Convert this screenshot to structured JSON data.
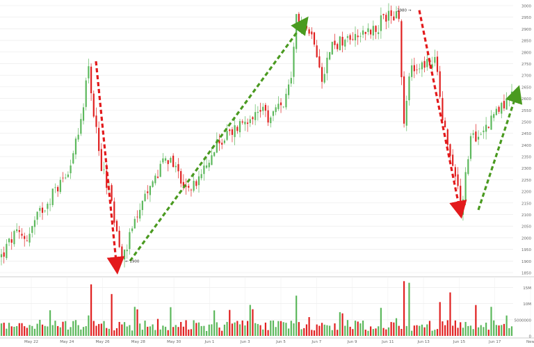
{
  "chart_data": {
    "type": "candlestick",
    "price_axis": {
      "min": 1850,
      "max": 3000,
      "ticks": [
        1850,
        1900,
        1950,
        2000,
        2050,
        2100,
        2150,
        2200,
        2250,
        2300,
        2350,
        2400,
        2450,
        2500,
        2550,
        2600,
        2650,
        2700,
        2750,
        2800,
        2850,
        2900,
        2950,
        3000
      ]
    },
    "volume_axis": {
      "min": 0,
      "max": 17500000,
      "ticks": [
        0,
        5000000,
        10000000,
        15000000
      ],
      "tick_labels": [
        "0",
        "5000000",
        "10M",
        "15M"
      ]
    },
    "x_labels": [
      "May 22",
      "May 24",
      "May 26",
      "May 28",
      "May 30",
      "Jun 1",
      "Jun 3",
      "Jun 5",
      "Jun 7",
      "Jun 9",
      "Jun 11",
      "Jun 13",
      "Jun 15",
      "Jun 17",
      "New"
    ],
    "price_path": [
      [
        0,
        1920
      ],
      [
        5,
        2010
      ],
      [
        10,
        2000
      ],
      [
        15,
        2110
      ],
      [
        20,
        2190
      ],
      [
        25,
        2270
      ],
      [
        30,
        2430
      ],
      [
        34,
        2750
      ],
      [
        38,
        2350
      ],
      [
        42,
        2200
      ],
      [
        47,
        1900
      ],
      [
        52,
        2060
      ],
      [
        58,
        2210
      ],
      [
        63,
        2330
      ],
      [
        68,
        2310
      ],
      [
        72,
        2200
      ],
      [
        78,
        2260
      ],
      [
        84,
        2400
      ],
      [
        90,
        2460
      ],
      [
        96,
        2520
      ],
      [
        100,
        2560
      ],
      [
        104,
        2510
      ],
      [
        110,
        2580
      ],
      [
        113,
        2660
      ],
      [
        115,
        2940
      ],
      [
        118,
        2900
      ],
      [
        122,
        2860
      ],
      [
        125,
        2700
      ],
      [
        129,
        2830
      ],
      [
        134,
        2850
      ],
      [
        138,
        2880
      ],
      [
        142,
        2890
      ],
      [
        146,
        2900
      ],
      [
        151,
        2970
      ],
      [
        155,
        2940
      ],
      [
        157,
        2490
      ],
      [
        160,
        2760
      ],
      [
        163,
        2720
      ],
      [
        166,
        2750
      ],
      [
        169,
        2770
      ],
      [
        173,
        2450
      ],
      [
        177,
        2280
      ],
      [
        179,
        2110
      ],
      [
        183,
        2410
      ],
      [
        187,
        2460
      ],
      [
        191,
        2510
      ],
      [
        195,
        2570
      ],
      [
        199,
        2620
      ]
    ],
    "volume_spikes": [
      [
        35,
        16000000
      ],
      [
        43,
        13000000
      ],
      [
        115,
        12500000
      ],
      [
        157,
        17000000
      ],
      [
        159,
        16500000
      ],
      [
        171,
        10500000
      ],
      [
        175,
        13500000
      ]
    ],
    "annotations": [
      {
        "type": "price_label",
        "text": "1900",
        "price": 1900
      },
      {
        "type": "price_label",
        "text": "2980",
        "price": 2980
      }
    ],
    "arrows": [
      {
        "color": "red",
        "from": [
          2760,
          2780
        ],
        "to": [
          1940,
          1870
        ],
        "direction": "down"
      },
      {
        "color": "green",
        "from": [
          1900,
          1880
        ],
        "to": [
          2950,
          2930
        ],
        "direction": "up"
      },
      {
        "color": "red",
        "from": [
          2980,
          3000
        ],
        "to": [
          2130,
          2110
        ],
        "direction": "down"
      },
      {
        "color": "green",
        "from": [
          2120,
          2100
        ],
        "to": [
          2620,
          2630
        ],
        "direction": "up"
      }
    ],
    "colors": {
      "up": "#5cb85c",
      "down": "#e02020",
      "arrow_red": "#e31a1c",
      "arrow_green": "#4a9a20",
      "grid": "#e8e8e8",
      "text": "#666666"
    },
    "grid": true
  }
}
